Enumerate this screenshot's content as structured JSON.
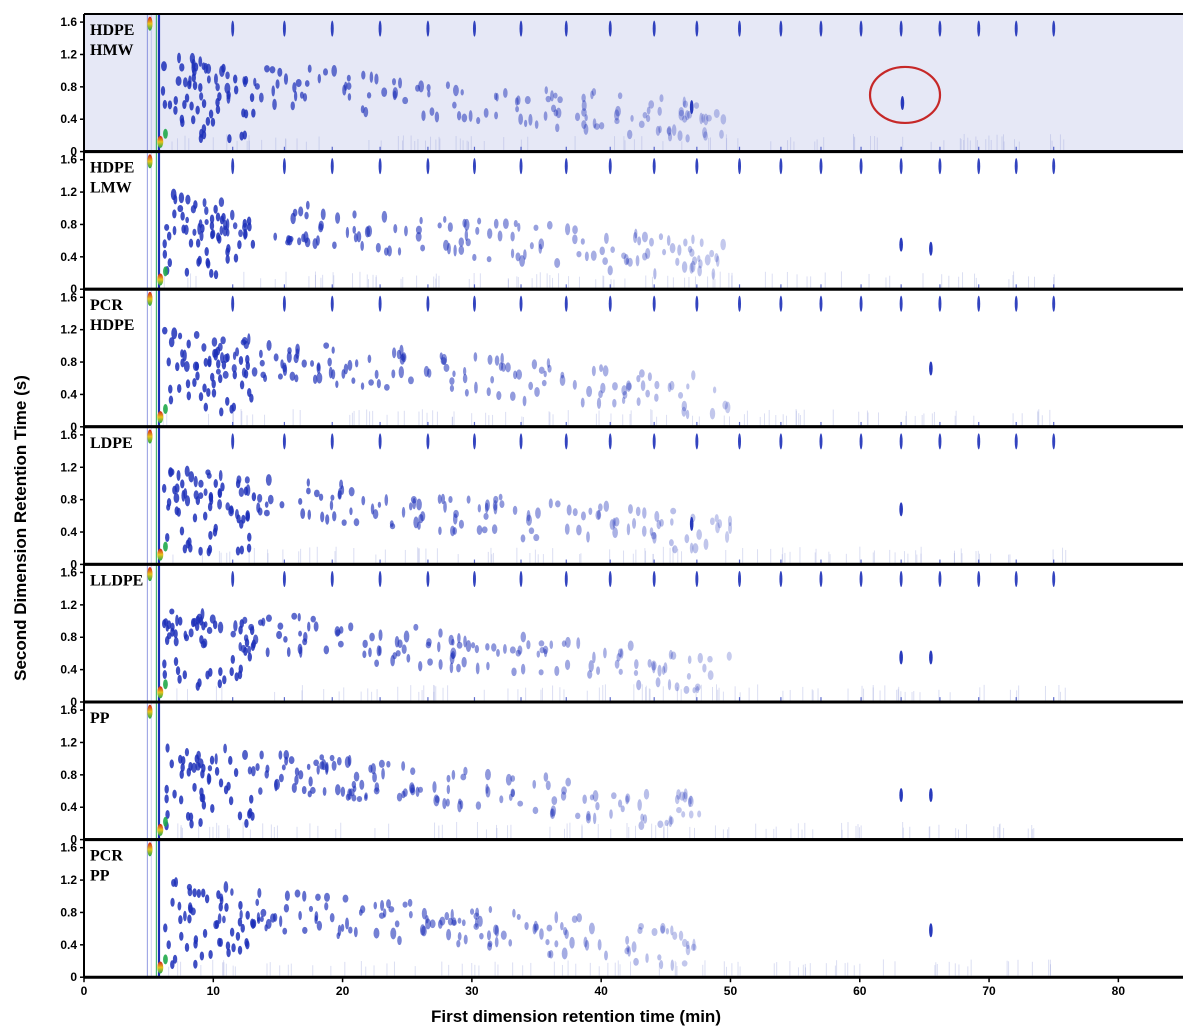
{
  "chart_data": {
    "type": "heatmap",
    "xlabel": "First dimension retention time (min)",
    "ylabel": "Second Dimension Retention Time (s)",
    "xlim": [
      0,
      85
    ],
    "ylim": [
      0,
      1.7
    ],
    "x_ticks": [
      0,
      10,
      20,
      30,
      40,
      50,
      60,
      70,
      80
    ],
    "y_ticks": [
      "0",
      "0.4",
      "0.8",
      "1.2",
      "1.6"
    ],
    "colors": {
      "low": "#ffffff",
      "mid": "#1c2fb8",
      "high": "#d11a1a",
      "green": "#1fa84a",
      "highlight_panel_bg": "#e6e8f6",
      "annotation_circle": "#c62828"
    },
    "homolog_x": [
      11.5,
      15.5,
      19.2,
      22.9,
      26.6,
      30.2,
      33.8,
      37.3,
      40.7,
      44.1,
      47.4,
      50.7,
      53.9,
      57.0,
      60.1,
      63.2,
      66.2,
      69.2,
      72.1,
      75.0
    ],
    "panels": [
      {
        "label_lines": [
          "HDPE",
          "HMW"
        ],
        "homolog_extent_min": 76,
        "background": "highlight",
        "late_peaks": [
          [
            47.0,
            0.55
          ],
          [
            63.3,
            0.6
          ]
        ],
        "annotation": {
          "shape": "circle",
          "x": 63.5,
          "y": 0.7
        }
      },
      {
        "label_lines": [
          "HDPE",
          "LMW"
        ],
        "homolog_extent_min": 76,
        "background": "white",
        "late_peaks": [
          [
            63.2,
            0.55
          ],
          [
            65.5,
            0.5
          ]
        ]
      },
      {
        "label_lines": [
          "PCR",
          "HDPE"
        ],
        "homolog_extent_min": 76,
        "background": "white",
        "late_peaks": [
          [
            65.5,
            0.72
          ]
        ]
      },
      {
        "label_lines": [
          "LDPE"
        ],
        "homolog_extent_min": 76,
        "background": "white",
        "late_peaks": [
          [
            47.0,
            0.5
          ],
          [
            63.2,
            0.68
          ]
        ]
      },
      {
        "label_lines": [
          "LLDPE"
        ],
        "homolog_extent_min": 76,
        "background": "white",
        "late_peaks": [
          [
            63.2,
            0.55
          ],
          [
            65.5,
            0.55
          ]
        ]
      },
      {
        "label_lines": [
          "PP"
        ],
        "homolog_extent_min": 0,
        "background": "white",
        "late_peaks": [
          [
            63.2,
            0.55
          ],
          [
            65.5,
            0.55
          ]
        ]
      },
      {
        "label_lines": [
          "PCR",
          "PP"
        ],
        "homolog_extent_min": 0,
        "background": "white",
        "late_peaks": [
          [
            65.5,
            0.58
          ]
        ]
      }
    ]
  }
}
